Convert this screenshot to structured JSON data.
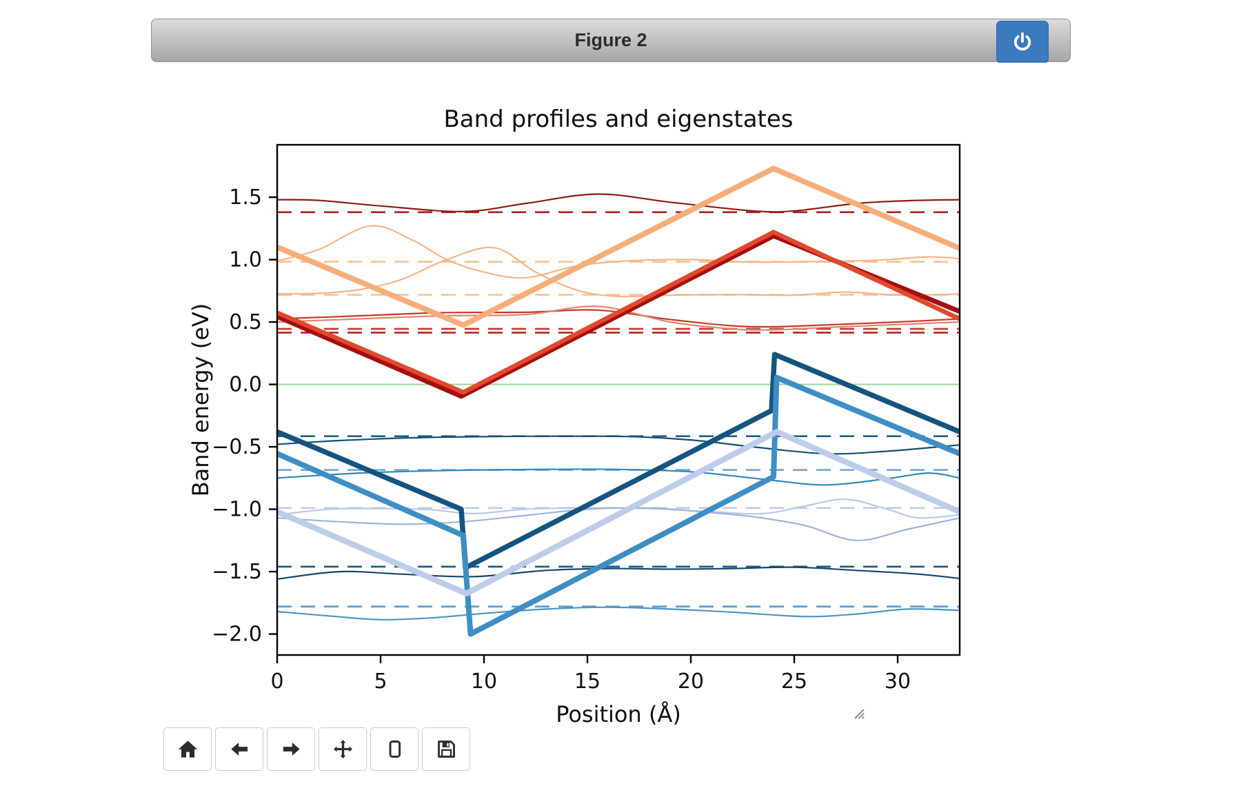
{
  "window": {
    "title": "Figure 2"
  },
  "chart_data": {
    "type": "line",
    "title": "Band profiles and eigenstates",
    "xlabel": "Position (Å)",
    "ylabel": "Band energy (eV)",
    "xlim": [
      0,
      33
    ],
    "ylim": [
      -2.168,
      1.92
    ],
    "grid": false,
    "xticks": {
      "values": [
        0,
        5,
        10,
        15,
        20,
        25,
        30
      ],
      "labels": [
        "0",
        "5",
        "10",
        "15",
        "20",
        "25",
        "30"
      ]
    },
    "yticks": {
      "values": [
        1.5,
        1.0,
        0.5,
        0.0,
        -0.5,
        -1.0,
        -1.5,
        -2.0
      ],
      "labels": [
        "1.5",
        "1.0",
        "0.5",
        "0.0",
        "−0.5",
        "−1.0",
        "−1.5",
        "−2.0"
      ]
    },
    "zero_line": {
      "energy": 0.0,
      "color": "#99d596",
      "width": 2
    },
    "band_profiles": [
      {
        "name": "conduction-band-light",
        "color": "#f5ae7b",
        "width": 8,
        "points": [
          [
            0,
            1.1
          ],
          [
            9.0,
            0.475
          ],
          [
            24,
            1.73
          ],
          [
            33,
            1.09
          ]
        ]
      },
      {
        "name": "conduction-band-dark",
        "color": "#a50f0f",
        "width": 7,
        "points": [
          [
            0,
            0.545
          ],
          [
            8.9,
            -0.095
          ],
          [
            24,
            1.19
          ],
          [
            33,
            0.585
          ]
        ]
      },
      {
        "name": "conduction-band-bright",
        "color": "#e2492d",
        "width": 6.5,
        "points": [
          [
            0,
            0.575
          ],
          [
            9.0,
            -0.063
          ],
          [
            24,
            1.22
          ],
          [
            33,
            0.525
          ]
        ]
      },
      {
        "name": "valence-band-navy",
        "color": "#14547e",
        "width": 7.5,
        "points": [
          [
            0,
            -0.38
          ],
          [
            8.9,
            -1.0
          ],
          [
            9.1,
            -1.47
          ],
          [
            23.9,
            -0.21
          ],
          [
            24.05,
            0.24
          ],
          [
            33,
            -0.38
          ]
        ]
      },
      {
        "name": "valence-band-steel",
        "color": "#3e8ec4",
        "width": 8,
        "points": [
          [
            0,
            -0.555
          ],
          [
            9.0,
            -1.21
          ],
          [
            9.35,
            -2.0
          ],
          [
            24.0,
            -0.74
          ],
          [
            24.15,
            0.055
          ],
          [
            33,
            -0.555
          ]
        ]
      },
      {
        "name": "valence-band-lavender",
        "color": "#bdcce9",
        "width": 8.5,
        "points": [
          [
            0,
            -1.02
          ],
          [
            9.15,
            -1.675
          ],
          [
            24.15,
            -0.38
          ],
          [
            33,
            -1.02
          ]
        ]
      }
    ],
    "eigenvalues_dashed": [
      {
        "energy": 1.38,
        "color": "#b22222"
      },
      {
        "energy": 0.983,
        "color": "#f8c392"
      },
      {
        "energy": 0.718,
        "color": "#f8c392"
      },
      {
        "energy": 0.445,
        "color": "#c93b2d"
      },
      {
        "energy": 0.415,
        "color": "#b22222"
      },
      {
        "energy": -0.415,
        "color": "#1a5e8a"
      },
      {
        "energy": -0.685,
        "color": "#6fa8d2"
      },
      {
        "energy": -0.99,
        "color": "#bfcde9"
      },
      {
        "energy": -1.46,
        "color": "#1a5e8a"
      },
      {
        "energy": -1.78,
        "color": "#5c9ed1"
      }
    ],
    "wavefunctions": [
      {
        "state": 1.38,
        "color": "#8e1c15",
        "width": 2.2,
        "points": [
          [
            0,
            1.48
          ],
          [
            2,
            1.475
          ],
          [
            5,
            1.43
          ],
          [
            9,
            1.385
          ],
          [
            12,
            1.45
          ],
          [
            15.5,
            1.525
          ],
          [
            19,
            1.46
          ],
          [
            23,
            1.39
          ],
          [
            25,
            1.39
          ],
          [
            28,
            1.45
          ],
          [
            30.5,
            1.472
          ],
          [
            33,
            1.48
          ]
        ]
      },
      {
        "state": 0.98,
        "color": "#f6b484",
        "width": 2.2,
        "points": [
          [
            0,
            0.99
          ],
          [
            2,
            1.08
          ],
          [
            4.5,
            1.27
          ],
          [
            6.5,
            1.16
          ],
          [
            8.2,
            1.0
          ],
          [
            10,
            0.9
          ],
          [
            12,
            0.855
          ],
          [
            14.5,
            0.95
          ],
          [
            17,
            0.99
          ],
          [
            20,
            1.0
          ],
          [
            23,
            0.98
          ],
          [
            26,
            0.985
          ],
          [
            29,
            0.995
          ],
          [
            31.5,
            1.022
          ],
          [
            33,
            1.008
          ]
        ]
      },
      {
        "state": 0.72,
        "color": "#f6b484",
        "width": 2.2,
        "points": [
          [
            0,
            0.725
          ],
          [
            2,
            0.73
          ],
          [
            4,
            0.76
          ],
          [
            6,
            0.84
          ],
          [
            8.2,
            1.0
          ],
          [
            10.5,
            1.095
          ],
          [
            12.5,
            0.9
          ],
          [
            14.5,
            0.755
          ],
          [
            16.5,
            0.705
          ],
          [
            19,
            0.715
          ],
          [
            22,
            0.72
          ],
          [
            25,
            0.715
          ],
          [
            27.5,
            0.74
          ],
          [
            30,
            0.715
          ],
          [
            33,
            0.725
          ]
        ]
      },
      {
        "state": 0.445,
        "color": "#c23a2b",
        "width": 2.2,
        "points": [
          [
            0,
            0.525
          ],
          [
            4,
            0.55
          ],
          [
            8,
            0.575
          ],
          [
            12,
            0.578
          ],
          [
            15.5,
            0.595
          ],
          [
            19,
            0.52
          ],
          [
            22,
            0.47
          ],
          [
            24,
            0.462
          ],
          [
            27,
            0.48
          ],
          [
            30,
            0.5
          ],
          [
            33,
            0.525
          ]
        ]
      },
      {
        "state": 0.415,
        "color": "#e4826c",
        "width": 2.2,
        "points": [
          [
            0,
            0.5
          ],
          [
            4,
            0.525
          ],
          [
            8,
            0.55
          ],
          [
            12,
            0.56
          ],
          [
            15.5,
            0.625
          ],
          [
            19,
            0.5
          ],
          [
            22,
            0.445
          ],
          [
            24,
            0.437
          ],
          [
            27,
            0.46
          ],
          [
            30,
            0.48
          ],
          [
            33,
            0.5
          ]
        ]
      },
      {
        "state": -0.415,
        "color": "#174f76",
        "width": 2.2,
        "points": [
          [
            0,
            -0.48
          ],
          [
            3,
            -0.45
          ],
          [
            6,
            -0.43
          ],
          [
            9,
            -0.42
          ],
          [
            13,
            -0.415
          ],
          [
            17,
            -0.418
          ],
          [
            20,
            -0.445
          ],
          [
            23,
            -0.5
          ],
          [
            26.5,
            -0.555
          ],
          [
            29.5,
            -0.535
          ],
          [
            33,
            -0.485
          ]
        ]
      },
      {
        "state": -0.685,
        "color": "#3487bc",
        "width": 2.2,
        "points": [
          [
            0,
            -0.75
          ],
          [
            4,
            -0.71
          ],
          [
            8,
            -0.69
          ],
          [
            12,
            -0.682
          ],
          [
            16,
            -0.68
          ],
          [
            20,
            -0.7
          ],
          [
            23.5,
            -0.76
          ],
          [
            26.5,
            -0.805
          ],
          [
            29.5,
            -0.755
          ],
          [
            31.5,
            -0.71
          ],
          [
            33,
            -0.75
          ]
        ]
      },
      {
        "state": -0.99,
        "color": "#b9c9e6",
        "width": 2.2,
        "points": [
          [
            0,
            -1.045
          ],
          [
            2.5,
            -1.0
          ],
          [
            5,
            -0.995
          ],
          [
            7.5,
            -1.005
          ],
          [
            9.5,
            -1.035
          ],
          [
            12,
            -1.0
          ],
          [
            15,
            -0.99
          ],
          [
            18,
            -0.995
          ],
          [
            21,
            -1.02
          ],
          [
            23.5,
            -1.035
          ],
          [
            25.5,
            -0.975
          ],
          [
            27.5,
            -0.92
          ],
          [
            29.5,
            -1.0
          ],
          [
            31,
            -1.07
          ],
          [
            33,
            -1.045
          ]
        ]
      },
      {
        "state": -0.99,
        "color": "#9db4d9",
        "width": 2.2,
        "points": [
          [
            0,
            -1.07
          ],
          [
            3,
            -1.1
          ],
          [
            6,
            -1.12
          ],
          [
            9,
            -1.1
          ],
          [
            12,
            -1.05
          ],
          [
            15,
            -1.0
          ],
          [
            18,
            -0.99
          ],
          [
            20.5,
            -1.02
          ],
          [
            23,
            -1.06
          ],
          [
            25.5,
            -1.13
          ],
          [
            28,
            -1.25
          ],
          [
            30.5,
            -1.16
          ],
          [
            33,
            -1.07
          ]
        ]
      },
      {
        "state": -1.46,
        "color": "#14466b",
        "width": 2.2,
        "points": [
          [
            0,
            -1.56
          ],
          [
            3,
            -1.5
          ],
          [
            6,
            -1.52
          ],
          [
            9.5,
            -1.54
          ],
          [
            13,
            -1.49
          ],
          [
            16,
            -1.475
          ],
          [
            19,
            -1.48
          ],
          [
            22,
            -1.475
          ],
          [
            25,
            -1.465
          ],
          [
            28,
            -1.49
          ],
          [
            31,
            -1.52
          ],
          [
            33,
            -1.555
          ]
        ]
      },
      {
        "state": -1.78,
        "color": "#4b95c6",
        "width": 2.2,
        "points": [
          [
            0,
            -1.82
          ],
          [
            2.5,
            -1.855
          ],
          [
            5,
            -1.885
          ],
          [
            7.5,
            -1.87
          ],
          [
            10,
            -1.835
          ],
          [
            13,
            -1.8
          ],
          [
            16,
            -1.785
          ],
          [
            19,
            -1.8
          ],
          [
            22,
            -1.825
          ],
          [
            25.5,
            -1.86
          ],
          [
            28,
            -1.84
          ],
          [
            30.5,
            -1.8
          ],
          [
            33,
            -1.81
          ]
        ]
      }
    ]
  },
  "toolbar": {
    "buttons": [
      {
        "name": "home",
        "icon": "home-icon"
      },
      {
        "name": "back",
        "icon": "arrow-left-icon"
      },
      {
        "name": "forward",
        "icon": "arrow-right-icon"
      },
      {
        "name": "pan",
        "icon": "move-icon"
      },
      {
        "name": "zoom",
        "icon": "zoom-rect-icon"
      },
      {
        "name": "download",
        "icon": "save-icon"
      }
    ]
  },
  "colors": {
    "accent_blue": "#3a7abd",
    "titlebar_gray": "#b5b5b5"
  }
}
